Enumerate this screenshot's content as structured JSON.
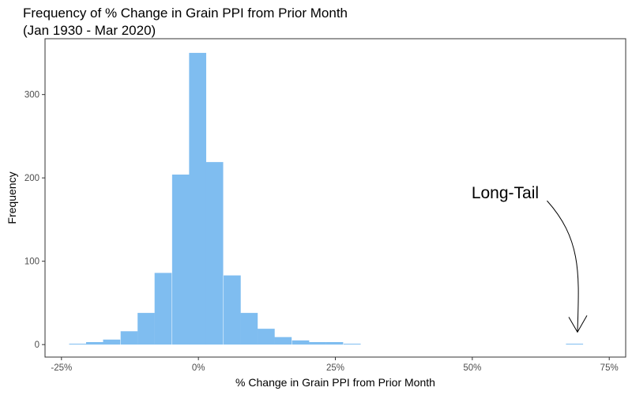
{
  "chart_data": {
    "type": "bar",
    "title": "Frequency of % Change in Grain PPI from Prior Month",
    "subtitle": "(Jan 1930 - Mar 2020)",
    "xlabel": "% Change in Grain PPI from Prior Month",
    "ylabel": "Frequency",
    "xlim": [
      -28,
      78
    ],
    "ylim": [
      -15,
      367
    ],
    "x_ticks": [
      {
        "value": -25,
        "label": "-25%"
      },
      {
        "value": 0,
        "label": "0%"
      },
      {
        "value": 25,
        "label": "25%"
      },
      {
        "value": 50,
        "label": "50%"
      },
      {
        "value": 75,
        "label": "75%"
      }
    ],
    "y_ticks": [
      {
        "value": 0,
        "label": "0"
      },
      {
        "value": 100,
        "label": "100"
      },
      {
        "value": 200,
        "label": "200"
      },
      {
        "value": 300,
        "label": "300"
      }
    ],
    "bin_width": 3.125,
    "bins": [
      {
        "x0": -23.6,
        "count": 1
      },
      {
        "x0": -20.5,
        "count": 3
      },
      {
        "x0": -17.4,
        "count": 6
      },
      {
        "x0": -14.2,
        "count": 16
      },
      {
        "x0": -11.1,
        "count": 38
      },
      {
        "x0": -8.0,
        "count": 86
      },
      {
        "x0": -4.8,
        "count": 204
      },
      {
        "x0": -1.7,
        "count": 350
      },
      {
        "x0": 1.4,
        "count": 219
      },
      {
        "x0": 4.6,
        "count": 83
      },
      {
        "x0": 7.7,
        "count": 38
      },
      {
        "x0": 10.8,
        "count": 19
      },
      {
        "x0": 13.9,
        "count": 9
      },
      {
        "x0": 17.1,
        "count": 5
      },
      {
        "x0": 20.2,
        "count": 3
      },
      {
        "x0": 23.3,
        "count": 3
      },
      {
        "x0": 26.5,
        "count": 1
      },
      {
        "x0": 67.1,
        "count": 1
      }
    ],
    "bar_color": "#7FBDF0",
    "grid": false,
    "annotation": {
      "text": "Long-Tail",
      "x": 56,
      "y": 183,
      "arrow_to": [
        69.2,
        15
      ]
    }
  }
}
